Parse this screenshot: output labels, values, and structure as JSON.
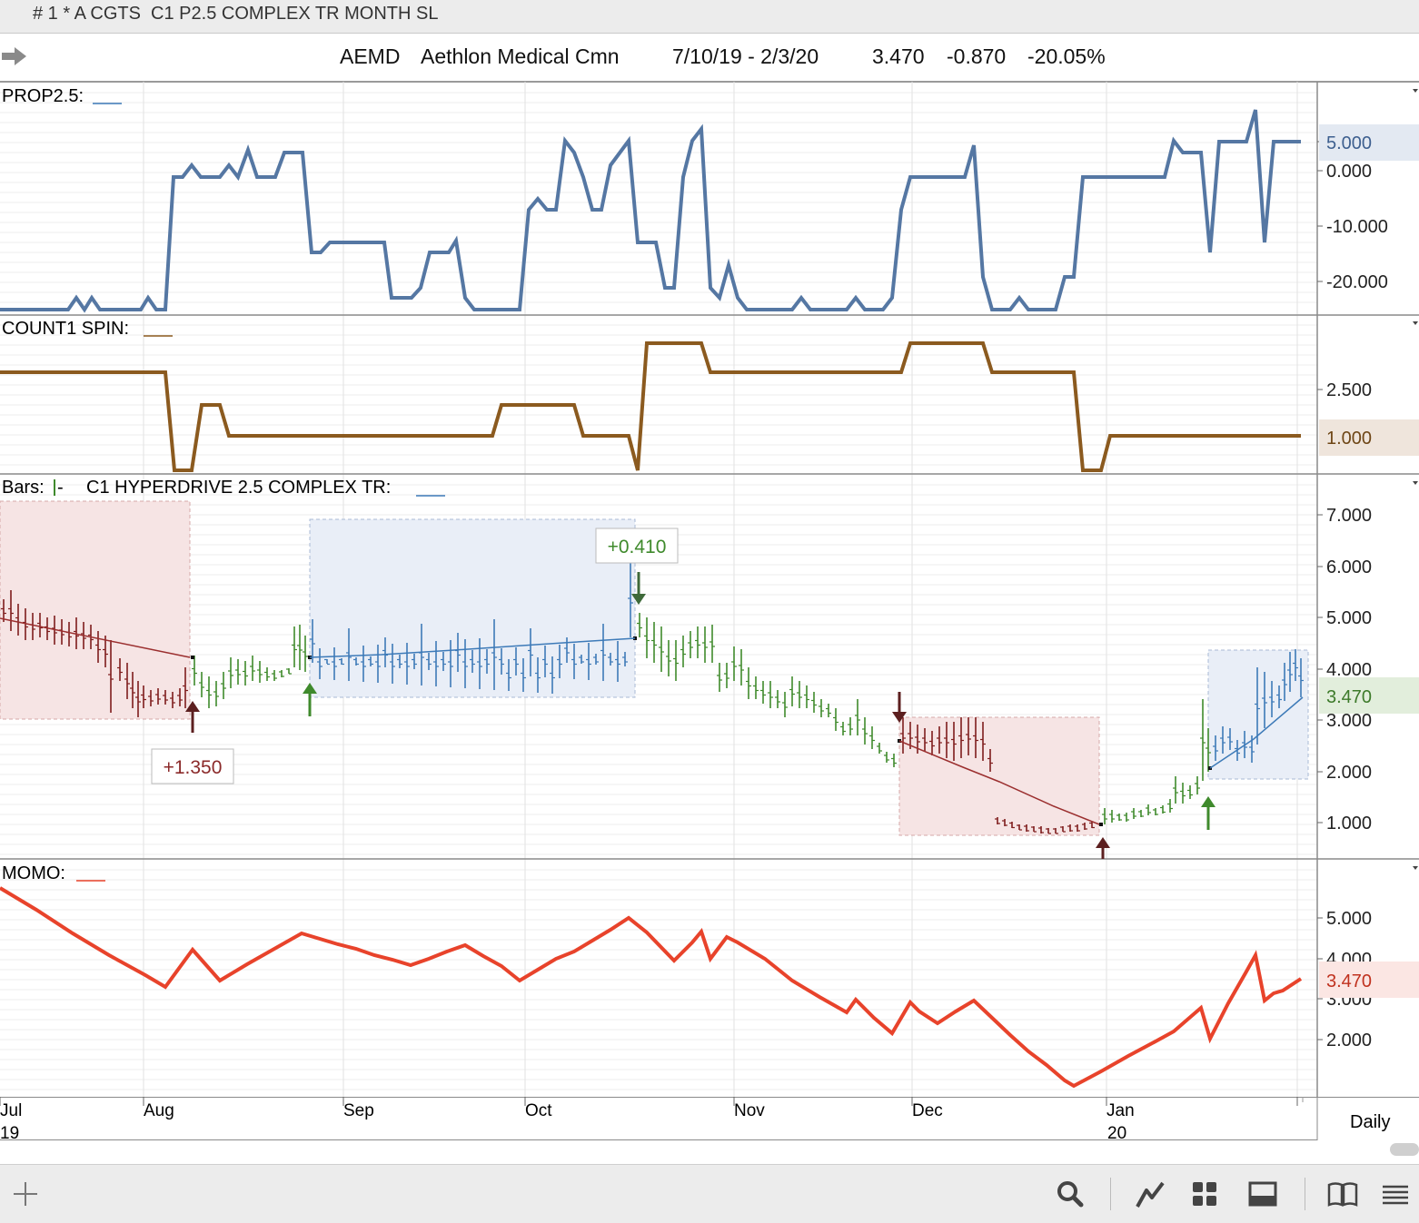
{
  "window": {
    "title": "# 1 * A CGTS  C1 P2.5 COMPLEX TR MONTH SL"
  },
  "quote": {
    "symbol": "AEMD",
    "name": "Aethlon Medical Cmn",
    "range": "7/10/19 - 2/3/20",
    "last": "3.470",
    "change": "-0.870",
    "pct": "-20.05%"
  },
  "panes": {
    "prop": {
      "label": "PROP2.5:",
      "ticks": [
        "5.000",
        "0.000",
        "-10.000",
        "-20.000"
      ],
      "badge": "5.000",
      "color": "#5577a3",
      "badge_bg": "#e3e9f2"
    },
    "count": {
      "label": "COUNT1 SPIN:",
      "ticks": [
        "2.500"
      ],
      "badge": "1.000",
      "color": "#8b5a1f",
      "badge_bg": "#efe5dc"
    },
    "bars": {
      "label": "Bars:",
      "study": "C1 HYPERDRIVE 2.5 COMPLEX TR:",
      "ticks": [
        "7.000",
        "6.000",
        "5.000",
        "4.000",
        "3.000",
        "2.000",
        "1.000"
      ],
      "badge": "3.470",
      "badge_bg": "#e2eedc",
      "badge_color": "#3d7a2a",
      "annotations": [
        "+0.410",
        "+1.350"
      ]
    },
    "momo": {
      "label": "MOMO:",
      "ticks": [
        "5.000",
        "4.000",
        "3.000",
        "2.000"
      ],
      "badge": "3.470",
      "color": "#e8432b",
      "badge_bg": "#fbe6e3"
    }
  },
  "timeaxis": {
    "months": [
      "Jul",
      "Aug",
      "Sep",
      "Oct",
      "Nov",
      "Dec",
      "Jan"
    ],
    "years": [
      "19",
      "20"
    ],
    "period": "Daily"
  },
  "toolbar": {
    "icons": [
      "plus-icon",
      "search-icon",
      "line-chart-icon",
      "grid-icon",
      "panel-icon",
      "book-icon",
      "list-icon"
    ]
  },
  "colors": {
    "up": "#3f8a2c",
    "down": "#7f1d1d",
    "trend": "#3d7ab8"
  }
}
